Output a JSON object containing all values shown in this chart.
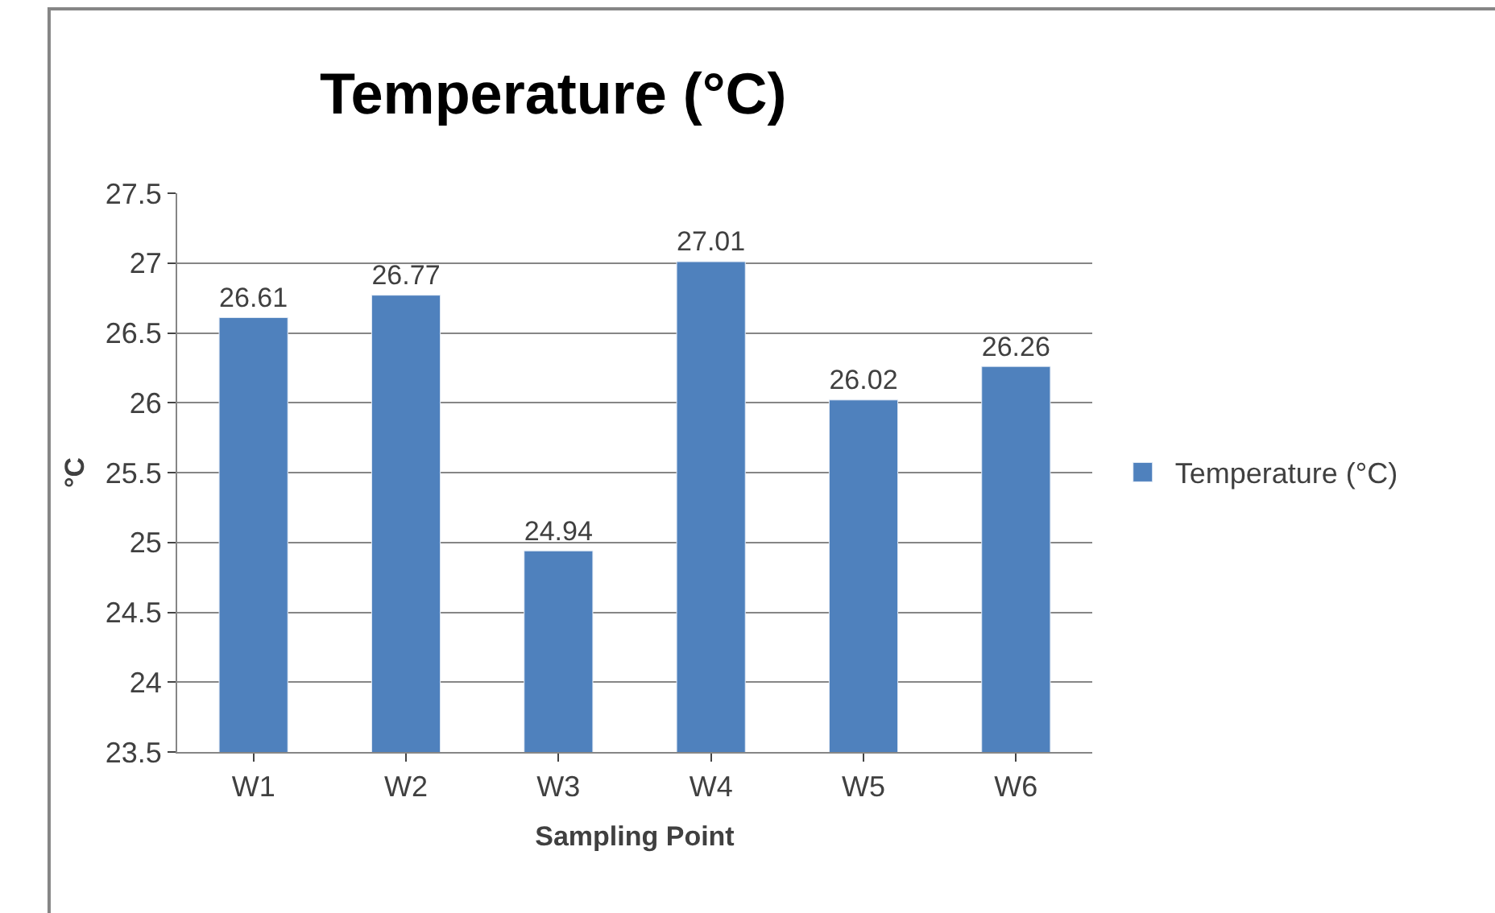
{
  "chart_data": {
    "type": "bar",
    "title": "Temperature (°C)",
    "xlabel": "Sampling Point",
    "ylabel": "°C",
    "categories": [
      "W1",
      "W2",
      "W3",
      "W4",
      "W5",
      "W6"
    ],
    "series": [
      {
        "name": "Temperature (°C)",
        "color": "#4f81bd",
        "values": [
          26.61,
          26.77,
          24.94,
          27.01,
          26.02,
          26.26
        ]
      }
    ],
    "ylim": [
      23.5,
      27.5
    ],
    "yticks": [
      23.5,
      24,
      24.5,
      25,
      25.5,
      26,
      26.5,
      27,
      27.5
    ],
    "grid": "y",
    "legend": "right",
    "data_labels": true
  }
}
